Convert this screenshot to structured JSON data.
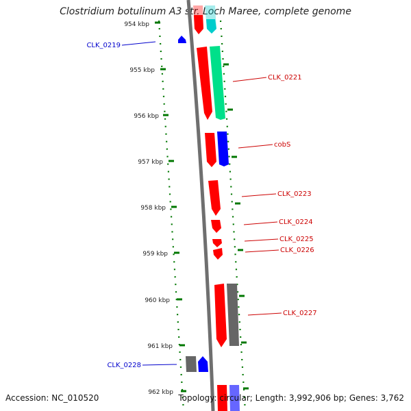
{
  "title": "Clostridium botulinum A3 str. Loch Maree, complete genome",
  "footer": {
    "accession": "Accession: NC_010520",
    "summary": "Topology: circular; Length: 3,992,906 bp; Genes: 3,762"
  },
  "ticks": [
    "954 kbp",
    "955 kbp",
    "956 kbp",
    "957 kbp",
    "958 kbp",
    "959 kbp",
    "960 kbp",
    "961 kbp",
    "962 kbp"
  ],
  "labels": [
    {
      "text": "CLK_0219",
      "color": "#0000cc"
    },
    {
      "text": "CLK_0221",
      "color": "#cc0000"
    },
    {
      "text": "cobS",
      "color": "#cc0000"
    },
    {
      "text": "CLK_0223",
      "color": "#cc0000"
    },
    {
      "text": "CLK_0224",
      "color": "#cc0000"
    },
    {
      "text": "CLK_0225",
      "color": "#cc0000"
    },
    {
      "text": "CLK_0226",
      "color": "#cc0000"
    },
    {
      "text": "CLK_0227",
      "color": "#cc0000"
    },
    {
      "text": "CLK_0228",
      "color": "#0000cc"
    }
  ],
  "colors": {
    "cds": "#ff0000",
    "rna": "#00e08a",
    "other": "#0000ff",
    "pseudo": "#666666",
    "tick": "#007700",
    "backbone": "#777777"
  }
}
